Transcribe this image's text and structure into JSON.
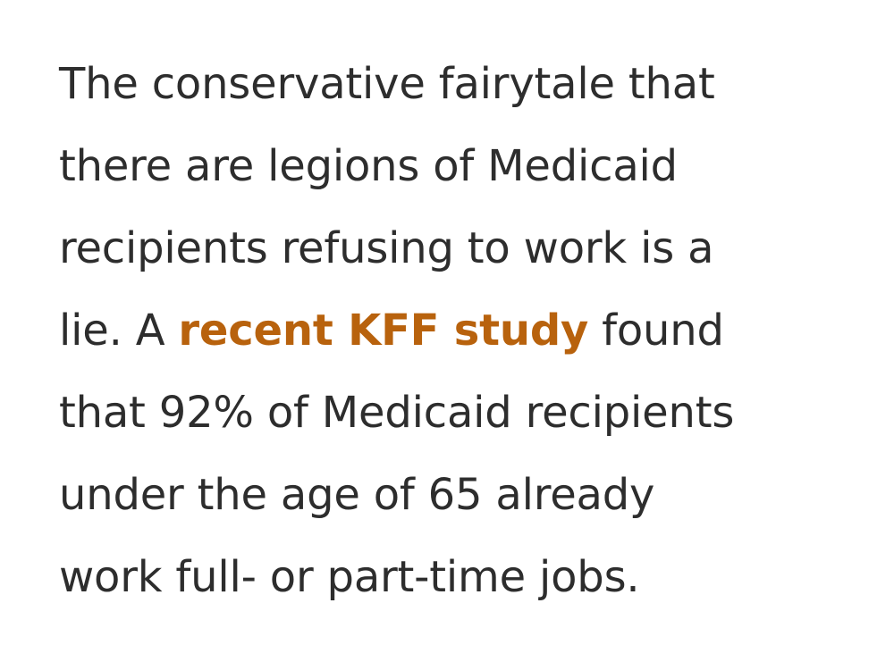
{
  "article": {
    "paragraph": {
      "line1": "The conservative fairytale that",
      "line2": "there are legions of Medicaid",
      "line3": "recipients refusing to work is a",
      "line4_before": "lie. A ",
      "link_text": "recent KFF study",
      "line4_after": " found",
      "line5": "that 92% of Medicaid recipients",
      "line6": "under the age of 65 already",
      "line7": "work full- or part-time jobs."
    },
    "colors": {
      "text": "#2d2d2d",
      "link": "#b8620d",
      "background": "#ffffff"
    }
  }
}
